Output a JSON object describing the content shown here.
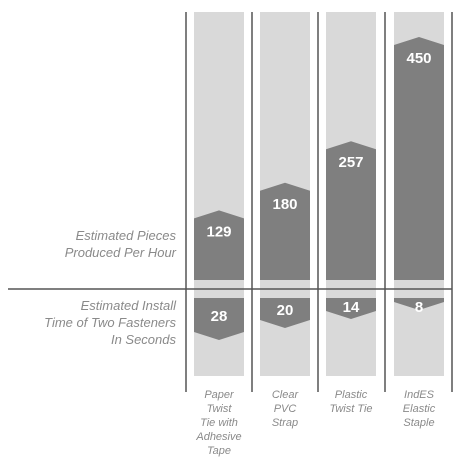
{
  "chart_data": {
    "type": "bar",
    "categories": [
      "Paper Twist Tie with Adhesive Tape",
      "Clear PVC Strap",
      "Plastic Twist Tie",
      "IndES Elastic Staple"
    ],
    "category_label_lines": [
      [
        "Paper",
        "Twist",
        "Tie with",
        "Adhesive",
        "Tape"
      ],
      [
        "Clear",
        "PVC",
        "Strap"
      ],
      [
        "Plastic",
        "Twist Tie"
      ],
      [
        "IndES",
        "Elastic",
        "Staple"
      ]
    ],
    "series": [
      {
        "name": "Estimated Pieces Produced Per Hour",
        "values": [
          129,
          180,
          257,
          450
        ],
        "direction": "up"
      },
      {
        "name": "Estimated Install Time of Two Fasteners In Seconds",
        "values": [
          28,
          20,
          14,
          8
        ],
        "direction": "down"
      }
    ],
    "value_labels_top": [
      "129",
      "180",
      "257",
      "450"
    ],
    "value_labels_bottom": [
      "28",
      "20",
      "14",
      "8"
    ],
    "ylim_top": [
      0,
      500
    ],
    "ylim_bottom": [
      0,
      40
    ],
    "grid": false,
    "colors": {
      "track": "#d9d9d9",
      "bar": "#7f7f7f",
      "divider": "#555555",
      "value_text": "#ffffff",
      "label_text": "#8a8a8a"
    }
  },
  "labels": {
    "top_row": [
      "Estimated Pieces",
      "Produced Per Hour"
    ],
    "bottom_row": [
      "Estimated Install",
      "Time of Two Fasteners",
      "In Seconds"
    ]
  }
}
